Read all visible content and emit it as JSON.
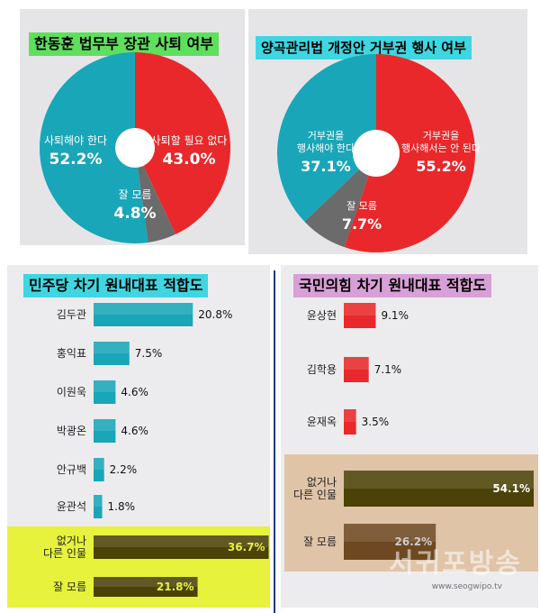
{
  "colors": {
    "teal": "#19a6b8",
    "red": "#e8282a",
    "gray": "#6b6b6b",
    "panel": "#e5e5e7",
    "green_title": "#5ee05c",
    "cyan_title": "#3fd6e2",
    "pink_title": "#d8a0d6",
    "yellow_box": "#e6f23c",
    "tan_box": "#e0c4a8",
    "dark_bar": "#4a4206",
    "brown_bar": "#6e4820"
  },
  "chart_data": [
    {
      "type": "pie",
      "title": "한동훈 법무부 장관 사퇴 여부",
      "slices": [
        {
          "label": "사퇴해야 한다",
          "value": 52.2,
          "value_label": "52.2%",
          "color": "#19a6b8"
        },
        {
          "label": "사퇴할 필요 없다",
          "value": 43.0,
          "value_label": "43.0%",
          "color": "#e8282a"
        },
        {
          "label": "잘 모름",
          "value": 4.8,
          "value_label": "4.8%",
          "color": "#6b6b6b"
        }
      ]
    },
    {
      "type": "pie",
      "title": "양곡관리법 개정안 거부권 행사 여부",
      "slices": [
        {
          "label": "거부권을\n행사해야 한다",
          "value": 37.1,
          "value_label": "37.1%",
          "color": "#19a6b8"
        },
        {
          "label": "거부권을\n행사해서는 안 된다",
          "value": 55.2,
          "value_label": "55.2%",
          "color": "#e8282a"
        },
        {
          "label": "잘 모름",
          "value": 7.7,
          "value_label": "7.7%",
          "color": "#6b6b6b"
        }
      ]
    },
    {
      "type": "bar",
      "title": "민주당 차기 원내대표 적합도",
      "categories": [
        "김두관",
        "홍익표",
        "이원욱",
        "박광온",
        "안규백",
        "윤관석",
        "없거나\n다른 인물",
        "잘 모름"
      ],
      "values": [
        20.8,
        7.5,
        4.6,
        4.6,
        2.2,
        1.8,
        36.7,
        21.8
      ],
      "value_labels": [
        "20.8%",
        "7.5%",
        "4.6%",
        "4.6%",
        "2.2%",
        "1.8%",
        "36.7%",
        "21.8%"
      ]
    },
    {
      "type": "bar",
      "title": "국민의힘 차기 원내대표 적합도",
      "categories": [
        "윤상현",
        "김학용",
        "윤재옥",
        "없거나\n다른 인물",
        "잘 모름"
      ],
      "values": [
        9.1,
        7.1,
        3.5,
        54.1,
        26.2
      ],
      "value_labels": [
        "9.1%",
        "7.1%",
        "3.5%",
        "54.1%",
        "26.2%"
      ]
    }
  ],
  "watermark": {
    "name": "서귀포방송",
    "url": "www.seogwipo.tv"
  }
}
